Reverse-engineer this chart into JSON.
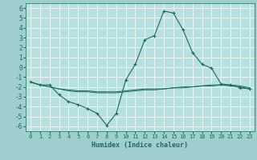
{
  "xlabel": "Humidex (Indice chaleur)",
  "ylabel": "",
  "xlim": [
    -0.5,
    23.5
  ],
  "ylim": [
    -6.5,
    6.5
  ],
  "xticks": [
    0,
    1,
    2,
    3,
    4,
    5,
    6,
    7,
    8,
    9,
    10,
    11,
    12,
    13,
    14,
    15,
    16,
    17,
    18,
    19,
    20,
    21,
    22,
    23
  ],
  "yticks": [
    -6,
    -5,
    -4,
    -3,
    -2,
    -1,
    0,
    1,
    2,
    3,
    4,
    5,
    6
  ],
  "background_color": "#9ecece",
  "plot_bg_color": "#b8e0e0",
  "line_color": "#1a6b5a",
  "grid_color": "#ffffff",
  "line1_x": [
    0,
    1,
    2,
    3,
    4,
    5,
    6,
    7,
    8,
    9,
    10,
    11,
    12,
    13,
    14,
    15,
    16,
    17,
    18,
    19,
    20,
    21,
    22,
    23
  ],
  "line1_y": [
    -1.5,
    -1.8,
    -1.8,
    -2.8,
    -3.5,
    -3.8,
    -4.2,
    -4.7,
    -5.9,
    -4.7,
    -1.3,
    0.3,
    2.8,
    3.2,
    5.7,
    5.5,
    3.8,
    1.5,
    0.3,
    -0.1,
    -1.7,
    -1.8,
    -2.1,
    -2.2
  ],
  "line2_x": [
    0,
    1,
    2,
    3,
    4,
    5,
    6,
    7,
    8,
    9,
    10,
    11,
    12,
    13,
    14,
    15,
    16,
    17,
    18,
    19,
    20,
    21,
    22,
    23
  ],
  "line2_y": [
    -1.5,
    -1.8,
    -2.0,
    -2.2,
    -2.4,
    -2.5,
    -2.5,
    -2.6,
    -2.6,
    -2.6,
    -2.5,
    -2.4,
    -2.3,
    -2.3,
    -2.2,
    -2.1,
    -2.0,
    -2.0,
    -1.9,
    -1.8,
    -1.8,
    -1.8,
    -1.9,
    -2.1
  ],
  "line3_x": [
    0,
    1,
    2,
    3,
    4,
    5,
    6,
    7,
    8,
    9,
    10,
    11,
    12,
    13,
    14,
    15,
    16,
    17,
    18,
    19,
    20,
    21,
    22,
    23
  ],
  "line3_y": [
    -1.5,
    -1.8,
    -2.0,
    -2.2,
    -2.3,
    -2.4,
    -2.4,
    -2.5,
    -2.5,
    -2.5,
    -2.4,
    -2.3,
    -2.2,
    -2.2,
    -2.2,
    -2.1,
    -2.1,
    -2.0,
    -1.9,
    -1.9,
    -1.8,
    -1.9,
    -2.0,
    -2.2
  ]
}
